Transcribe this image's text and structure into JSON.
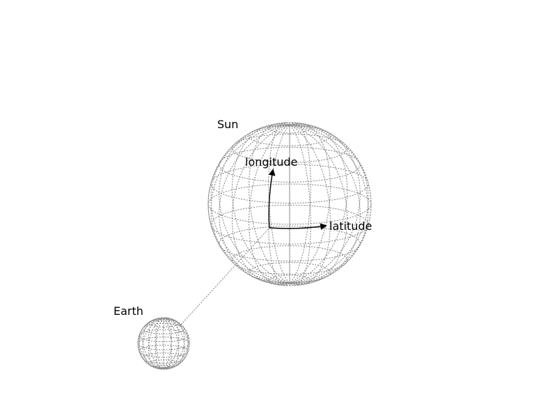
{
  "labels": {
    "sun": "Sun",
    "earth": "Earth",
    "longitude": "longitude",
    "latitude": "latitude"
  },
  "colors": {
    "grid": "#8c8c8c",
    "text": "#000000",
    "background": "#ffffff"
  }
}
